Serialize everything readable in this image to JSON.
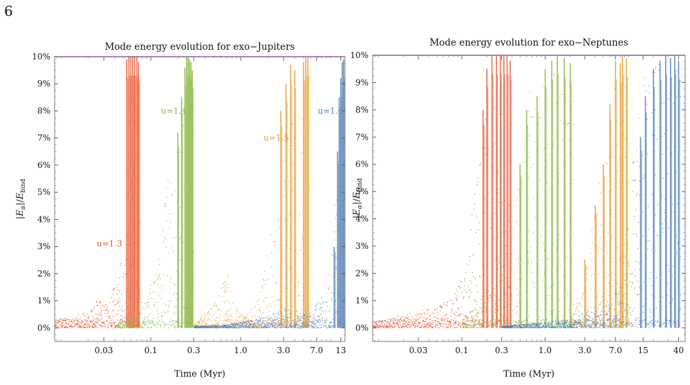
{
  "page_number": "6",
  "colors": {
    "u13": "#e8532c",
    "u14": "#86b43b",
    "u15": "#e39a2c",
    "u16": "#4f7bb5",
    "threshold": "#7a3b86",
    "frame": "#777777"
  },
  "chart_data": [
    {
      "type": "scatter",
      "title": "Mode energy evolution for exo−Jupiters",
      "xlabel": "Time (Myr)",
      "ylabel": "|E_α|/E_bind",
      "x_scale": "log",
      "xlim": [
        0.0085,
        14.5
      ],
      "ylim": [
        -0.5,
        10.0
      ],
      "x_ticks": [
        {
          "value": 0.03,
          "label": "0.03"
        },
        {
          "value": 0.1,
          "label": "0.1"
        },
        {
          "value": 0.3,
          "label": "0.3"
        },
        {
          "value": 1.0,
          "label": "1.0"
        },
        {
          "value": 3.0,
          "label": "3.0"
        },
        {
          "value": 7.0,
          "label": "7.0"
        },
        {
          "value": 13,
          "label": "13"
        }
      ],
      "y_ticks": [
        {
          "value": 0,
          "label": "0%"
        },
        {
          "value": 1,
          "label": "1%"
        },
        {
          "value": 2,
          "label": "2%"
        },
        {
          "value": 3,
          "label": "3%"
        },
        {
          "value": 4,
          "label": "4%"
        },
        {
          "value": 5,
          "label": "5%"
        },
        {
          "value": 6,
          "label": "6%"
        },
        {
          "value": 7,
          "label": "7%"
        },
        {
          "value": 8,
          "label": "8%"
        },
        {
          "value": 9,
          "label": "9%"
        },
        {
          "value": 10,
          "label": "10%"
        }
      ],
      "threshold_y": 10,
      "annotations": [
        {
          "text": "u=1.3",
          "series": "u13",
          "x": 0.025,
          "y": 3.0
        },
        {
          "text": "u=1.4",
          "series": "u14",
          "x": 0.13,
          "y": 7.9
        },
        {
          "text": "u=1.5",
          "series": "u15",
          "x": 1.8,
          "y": 6.9
        },
        {
          "text": "u=1.6",
          "series": "u16",
          "x": 7.2,
          "y": 7.9
        }
      ],
      "series": [
        {
          "key": "u13",
          "end_x": 0.075,
          "envelope": [
            [
              0.0085,
              0.3
            ],
            [
              0.013,
              0.4
            ],
            [
              0.02,
              0.6
            ],
            [
              0.025,
              1.1
            ],
            [
              0.03,
              0.8
            ],
            [
              0.035,
              1.2
            ],
            [
              0.04,
              1.6
            ],
            [
              0.045,
              2.4
            ],
            [
              0.05,
              3.2
            ],
            [
              0.054,
              5.5
            ],
            [
              0.058,
              9.8
            ],
            [
              0.065,
              10.0
            ],
            [
              0.075,
              10.0
            ]
          ],
          "spikes": [
            [
              0.054,
              9.9
            ],
            [
              0.057,
              10.0
            ],
            [
              0.06,
              10.0
            ],
            [
              0.063,
              10.0
            ],
            [
              0.066,
              10.0
            ],
            [
              0.07,
              10.0
            ],
            [
              0.073,
              9.8
            ]
          ]
        },
        {
          "key": "u14",
          "end_x": 0.3,
          "envelope": [
            [
              0.04,
              0.1
            ],
            [
              0.06,
              0.6
            ],
            [
              0.08,
              1.2
            ],
            [
              0.1,
              1.7
            ],
            [
              0.12,
              2.5
            ],
            [
              0.14,
              4.5
            ],
            [
              0.16,
              6.2
            ],
            [
              0.18,
              4.8
            ],
            [
              0.2,
              6.5
            ],
            [
              0.22,
              7.0
            ],
            [
              0.25,
              9.5
            ],
            [
              0.28,
              10.0
            ],
            [
              0.3,
              9.8
            ]
          ],
          "spikes": [
            [
              0.2,
              7.2
            ],
            [
              0.22,
              8.5
            ],
            [
              0.24,
              9.6
            ],
            [
              0.25,
              10.0
            ],
            [
              0.26,
              10.0
            ],
            [
              0.27,
              9.9
            ],
            [
              0.28,
              9.8
            ],
            [
              0.29,
              9.5
            ]
          ]
        },
        {
          "key": "u15",
          "end_x": 5.8,
          "envelope": [
            [
              0.3,
              0.1
            ],
            [
              0.4,
              0.6
            ],
            [
              0.5,
              0.9
            ],
            [
              0.6,
              1.5
            ],
            [
              0.7,
              2.2
            ],
            [
              0.8,
              1.0
            ],
            [
              1.0,
              0.5
            ],
            [
              1.5,
              1.0
            ],
            [
              2.0,
              2.8
            ],
            [
              2.5,
              5.0
            ],
            [
              3.0,
              6.5
            ],
            [
              3.5,
              8.5
            ],
            [
              4.0,
              9.0
            ],
            [
              4.5,
              6.5
            ],
            [
              5.0,
              9.5
            ],
            [
              5.5,
              10.0
            ],
            [
              5.8,
              9.9
            ]
          ],
          "spikes": [
            [
              2.8,
              8.0
            ],
            [
              3.2,
              9.0
            ],
            [
              3.6,
              9.7
            ],
            [
              4.0,
              9.5
            ],
            [
              5.0,
              9.8
            ],
            [
              5.3,
              10.0
            ],
            [
              5.6,
              10.0
            ]
          ]
        },
        {
          "key": "u16",
          "end_x": 14.0,
          "envelope": [
            [
              0.3,
              0.05
            ],
            [
              0.7,
              0.1
            ],
            [
              1.0,
              0.2
            ],
            [
              2.0,
              0.4
            ],
            [
              3.0,
              0.8
            ],
            [
              4.0,
              0.5
            ],
            [
              6.0,
              0.6
            ],
            [
              8.0,
              1.2
            ],
            [
              10.0,
              2.5
            ],
            [
              12.0,
              7.0
            ],
            [
              13.0,
              9.0
            ],
            [
              14.0,
              9.9
            ]
          ],
          "spikes": [
            [
              11.0,
              3.0
            ],
            [
              12.0,
              6.5
            ],
            [
              12.5,
              8.5
            ],
            [
              13.0,
              9.2
            ],
            [
              13.5,
              9.8
            ],
            [
              14.0,
              9.9
            ]
          ]
        }
      ]
    },
    {
      "type": "scatter",
      "title": "Mode energy evolution for exo−Neptunes",
      "xlabel": "Time (Myr)",
      "ylabel": "|E_α|/E_bind",
      "x_scale": "log",
      "xlim": [
        0.0085,
        48
      ],
      "ylim": [
        -0.5,
        10.0
      ],
      "x_ticks": [
        {
          "value": 0.03,
          "label": "0.03"
        },
        {
          "value": 0.1,
          "label": "0.1"
        },
        {
          "value": 0.3,
          "label": "0.3"
        },
        {
          "value": 1.0,
          "label": "1.0"
        },
        {
          "value": 3.0,
          "label": "3.0"
        },
        {
          "value": 7.0,
          "label": "7.0"
        },
        {
          "value": 15,
          "label": "15"
        },
        {
          "value": 40,
          "label": "40"
        }
      ],
      "y_ticks": [
        {
          "value": 0,
          "label": "0%"
        },
        {
          "value": 1,
          "label": "1%"
        },
        {
          "value": 2,
          "label": "2%"
        },
        {
          "value": 3,
          "label": "3%"
        },
        {
          "value": 4,
          "label": "4%"
        },
        {
          "value": 5,
          "label": "5%"
        },
        {
          "value": 6,
          "label": "6%"
        },
        {
          "value": 7,
          "label": "7%"
        },
        {
          "value": 8,
          "label": "8%"
        },
        {
          "value": 9,
          "label": "9%"
        },
        {
          "value": 10,
          "label": "10%"
        }
      ],
      "threshold_y": 10,
      "annotations": [],
      "series": [
        {
          "key": "u13",
          "end_x": 0.4,
          "envelope": [
            [
              0.0085,
              0.2
            ],
            [
              0.02,
              0.5
            ],
            [
              0.04,
              0.7
            ],
            [
              0.07,
              1.0
            ],
            [
              0.1,
              2.0
            ],
            [
              0.12,
              3.5
            ],
            [
              0.15,
              5.5
            ],
            [
              0.2,
              8.5
            ],
            [
              0.25,
              9.9
            ],
            [
              0.3,
              10.0
            ],
            [
              0.35,
              10.0
            ],
            [
              0.4,
              9.8
            ]
          ],
          "spikes": [
            [
              0.18,
              8.0
            ],
            [
              0.2,
              9.5
            ],
            [
              0.23,
              10.0
            ],
            [
              0.26,
              10.0
            ],
            [
              0.29,
              10.0
            ],
            [
              0.32,
              10.0
            ],
            [
              0.35,
              10.0
            ],
            [
              0.38,
              9.8
            ]
          ]
        },
        {
          "key": "u14",
          "end_x": 2.2,
          "envelope": [
            [
              0.1,
              0.3
            ],
            [
              0.2,
              1.5
            ],
            [
              0.3,
              3.0
            ],
            [
              0.4,
              5.0
            ],
            [
              0.5,
              6.0
            ],
            [
              0.6,
              9.0
            ],
            [
              0.8,
              8.5
            ],
            [
              1.0,
              9.5
            ],
            [
              1.3,
              10.0
            ],
            [
              1.6,
              9.9
            ],
            [
              1.9,
              9.5
            ],
            [
              2.2,
              9.8
            ]
          ],
          "spikes": [
            [
              0.5,
              6.0
            ],
            [
              0.6,
              8.0
            ],
            [
              0.8,
              8.5
            ],
            [
              1.0,
              9.5
            ],
            [
              1.2,
              9.8
            ],
            [
              1.4,
              10.0
            ],
            [
              1.7,
              9.9
            ],
            [
              2.0,
              9.7
            ]
          ]
        },
        {
          "key": "u15",
          "end_x": 10.0,
          "envelope": [
            [
              2.0,
              0.3
            ],
            [
              3.0,
              2.0
            ],
            [
              4.0,
              4.5
            ],
            [
              5.0,
              6.5
            ],
            [
              6.0,
              8.0
            ],
            [
              7.0,
              9.8
            ],
            [
              8.0,
              9.5
            ],
            [
              9.0,
              10.0
            ],
            [
              10.0,
              9.8
            ]
          ],
          "spikes": [
            [
              3.0,
              2.5
            ],
            [
              4.0,
              4.5
            ],
            [
              5.0,
              6.0
            ],
            [
              6.0,
              8.2
            ],
            [
              7.0,
              9.8
            ],
            [
              8.0,
              9.7
            ],
            [
              8.5,
              10.0
            ],
            [
              9.5,
              9.9
            ]
          ]
        },
        {
          "key": "u16",
          "end_x": 42.0,
          "envelope": [
            [
              0.3,
              0.05
            ],
            [
              1.0,
              0.2
            ],
            [
              2.0,
              0.3
            ],
            [
              4.0,
              0.8
            ],
            [
              8.0,
              1.5
            ],
            [
              11.0,
              6.0
            ],
            [
              14.0,
              9.0
            ],
            [
              18.0,
              9.5
            ],
            [
              25.0,
              9.8
            ],
            [
              35.0,
              10.0
            ],
            [
              42.0,
              9.8
            ]
          ],
          "spikes": [
            [
              14.0,
              7.0
            ],
            [
              16.0,
              8.5
            ],
            [
              20.0,
              9.5
            ],
            [
              24.0,
              9.8
            ],
            [
              28.0,
              10.0
            ],
            [
              32.0,
              9.9
            ],
            [
              36.0,
              10.0
            ],
            [
              40.0,
              9.8
            ]
          ]
        }
      ]
    }
  ]
}
